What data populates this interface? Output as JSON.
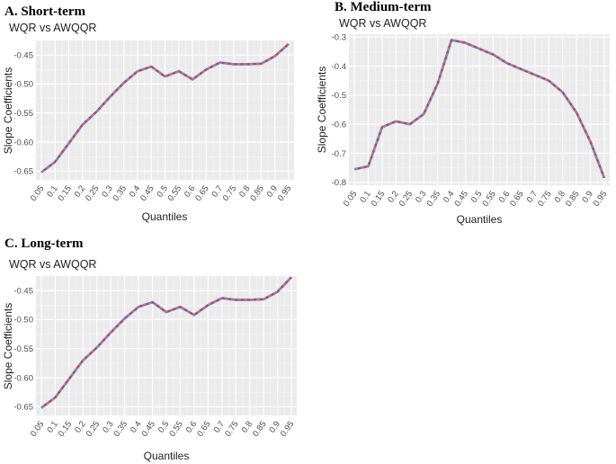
{
  "chart_data": [
    {
      "type": "line",
      "panel_label": "A.  Short-term",
      "title": "WQR vs AWQQR",
      "xlabel": "Quantiles",
      "ylabel": "Slope Coefficients",
      "categories": [
        "0.05",
        "0.1",
        "0.15",
        "0.2",
        "0.25",
        "0.3",
        "0.35",
        "0.4",
        "0.45",
        "0.5",
        "0.55",
        "0.6",
        "0.65",
        "0.7",
        "0.75",
        "0.8",
        "0.85",
        "0.9",
        "0.95"
      ],
      "x": [
        0.05,
        0.1,
        0.15,
        0.2,
        0.25,
        0.3,
        0.35,
        0.4,
        0.45,
        0.5,
        0.55,
        0.6,
        0.65,
        0.7,
        0.75,
        0.8,
        0.85,
        0.9,
        0.95
      ],
      "series": [
        {
          "values": [
            -0.652,
            -0.634,
            -0.602,
            -0.57,
            -0.548,
            -0.522,
            -0.498,
            -0.478,
            -0.47,
            -0.487,
            -0.478,
            -0.492,
            -0.475,
            -0.463,
            -0.466,
            -0.466,
            -0.465,
            -0.452,
            -0.431
          ],
          "color": "#ff2a2a"
        },
        {
          "values": [
            -0.652,
            -0.634,
            -0.602,
            -0.57,
            -0.548,
            -0.522,
            -0.498,
            -0.478,
            -0.47,
            -0.487,
            -0.478,
            -0.492,
            -0.475,
            -0.463,
            -0.466,
            -0.466,
            -0.465,
            -0.452,
            -0.431
          ],
          "color": "#4d9be6"
        }
      ],
      "yticks": [
        -0.65,
        -0.6,
        -0.55,
        -0.5,
        -0.45
      ],
      "ytick_labels": [
        "-0.65",
        "-0.60",
        "-0.55",
        "-0.50",
        "-0.45"
      ],
      "ylim": [
        -0.665,
        -0.425
      ],
      "grid": true
    },
    {
      "type": "line",
      "panel_label": "B.  Medium-term",
      "title": "WQR vs AWQQR",
      "xlabel": "Quantiles",
      "ylabel": "Slope Coefficients",
      "categories": [
        "0.05",
        "0.1",
        "0.15",
        "0.2",
        "0.25",
        "0.3",
        "0.35",
        "0.4",
        "0.45",
        "0.5",
        "0.55",
        "0.6",
        "0.65",
        "0.7",
        "0.75",
        "0.8",
        "0.85",
        "0.9",
        "0.95"
      ],
      "x": [
        0.05,
        0.1,
        0.15,
        0.2,
        0.25,
        0.3,
        0.35,
        0.4,
        0.45,
        0.5,
        0.55,
        0.6,
        0.65,
        0.7,
        0.75,
        0.8,
        0.85,
        0.9,
        0.95
      ],
      "series": [
        {
          "values": [
            -0.755,
            -0.745,
            -0.61,
            -0.59,
            -0.6,
            -0.565,
            -0.46,
            -0.31,
            -0.32,
            -0.34,
            -0.36,
            -0.39,
            -0.41,
            -0.43,
            -0.45,
            -0.49,
            -0.56,
            -0.66,
            -0.785
          ],
          "color": "#ff2a2a"
        },
        {
          "values": [
            -0.755,
            -0.745,
            -0.61,
            -0.59,
            -0.6,
            -0.565,
            -0.46,
            -0.31,
            -0.32,
            -0.34,
            -0.36,
            -0.39,
            -0.41,
            -0.43,
            -0.45,
            -0.49,
            -0.56,
            -0.66,
            -0.785
          ],
          "color": "#4d9be6"
        }
      ],
      "yticks": [
        -0.8,
        -0.7,
        -0.6,
        -0.5,
        -0.4,
        -0.3
      ],
      "ytick_labels": [
        "-0.8",
        "-0.7",
        "-0.6",
        "-0.5",
        "-0.4",
        "-0.3"
      ],
      "ylim": [
        -0.81,
        -0.29
      ],
      "grid": true
    },
    {
      "type": "line",
      "panel_label": "C.  Long-term",
      "title": "WQR vs AWQQR",
      "xlabel": "Quantiles",
      "ylabel": "Slope Coefficients",
      "categories": [
        "0.05",
        "0.1",
        "0.15",
        "0.2",
        "0.25",
        "0.3",
        "0.35",
        "0.4",
        "0.45",
        "0.5",
        "0.55",
        "0.6",
        "0.65",
        "0.7",
        "0.75",
        "0.8",
        "0.85",
        "0.9",
        "0.95"
      ],
      "x": [
        0.05,
        0.1,
        0.15,
        0.2,
        0.25,
        0.3,
        0.35,
        0.4,
        0.45,
        0.5,
        0.55,
        0.6,
        0.65,
        0.7,
        0.75,
        0.8,
        0.85,
        0.9,
        0.95
      ],
      "series": [
        {
          "values": [
            -0.652,
            -0.634,
            -0.602,
            -0.57,
            -0.548,
            -0.522,
            -0.498,
            -0.478,
            -0.47,
            -0.487,
            -0.478,
            -0.492,
            -0.475,
            -0.463,
            -0.466,
            -0.466,
            -0.465,
            -0.452,
            -0.427
          ],
          "color": "#ff2a2a"
        },
        {
          "values": [
            -0.652,
            -0.634,
            -0.602,
            -0.57,
            -0.548,
            -0.522,
            -0.498,
            -0.478,
            -0.47,
            -0.487,
            -0.478,
            -0.492,
            -0.475,
            -0.463,
            -0.466,
            -0.466,
            -0.465,
            -0.452,
            -0.427
          ],
          "color": "#4d9be6"
        }
      ],
      "yticks": [
        -0.65,
        -0.6,
        -0.55,
        -0.5,
        -0.45
      ],
      "ytick_labels": [
        "-0.65",
        "-0.60",
        "-0.55",
        "-0.50",
        "-0.45"
      ],
      "ylim": [
        -0.665,
        -0.425
      ],
      "grid": true
    }
  ]
}
